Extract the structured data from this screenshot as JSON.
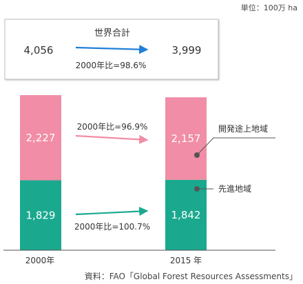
{
  "unit_label": "単位：100万 ha",
  "source_label": "資料：FAO「Global Forest Resources Assessments」",
  "colors": {
    "developing": "#f18da6",
    "developed": "#1aa98f",
    "total_arrow": "#1f7fd8",
    "box_border": "#bdbdbd",
    "axis": "#555555"
  },
  "summary": {
    "title": "世界合計",
    "value_2000": "4,056",
    "value_2015": "3,999",
    "ratio_label": "2000年比=98.6%"
  },
  "chart_data": {
    "type": "bar",
    "stacked": true,
    "categories": [
      "2000年",
      "2015 年"
    ],
    "series": [
      {
        "name": "先進地域",
        "values": [
          1829,
          1842
        ],
        "value_labels": [
          "1,829",
          "1,842"
        ],
        "color": "#1aa98f"
      },
      {
        "name": "開発途上地域",
        "values": [
          2227,
          2157
        ],
        "value_labels": [
          "2,227",
          "2,157"
        ],
        "color": "#f18da6"
      }
    ],
    "ratio_labels": {
      "developing": "2000年比=96.9%",
      "developed": "2000年比=100.7%"
    },
    "ylim": [
      0,
      4100
    ]
  }
}
